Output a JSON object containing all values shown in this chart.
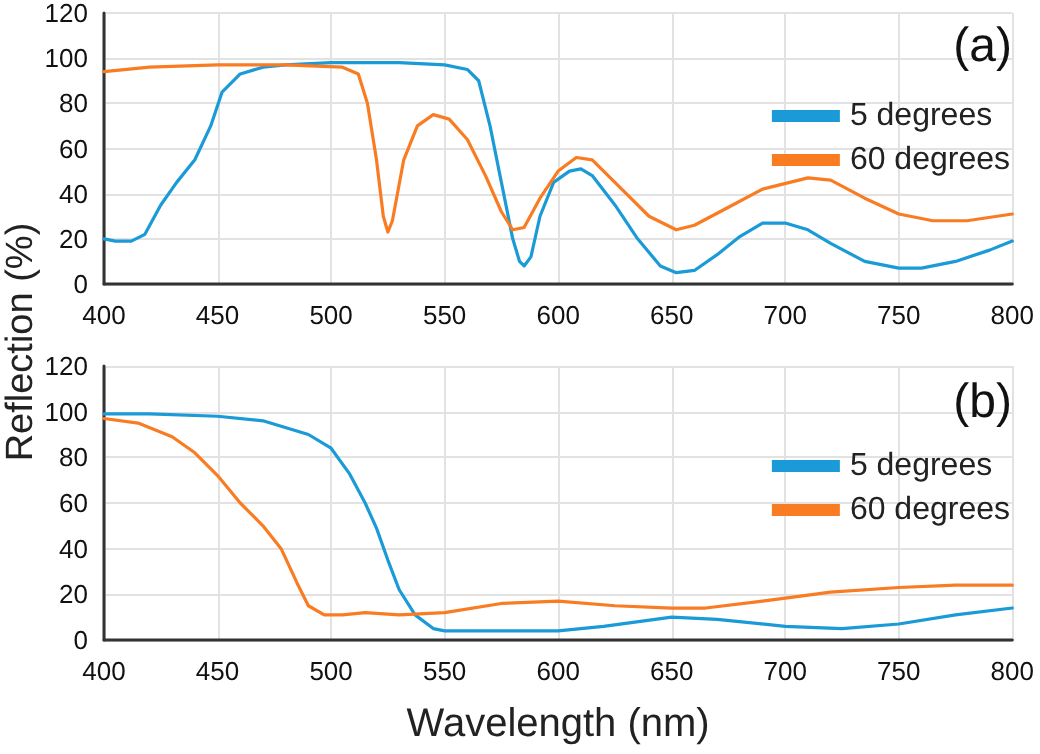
{
  "chart_data": [
    {
      "type": "line",
      "ylabel": "Reflection (%)",
      "annotations": [
        "(a)"
      ],
      "xlim": [
        400,
        800
      ],
      "xticks": [
        400,
        450,
        500,
        550,
        600,
        650,
        700,
        750,
        800
      ],
      "ylim": [
        0,
        120
      ],
      "yticks": [
        0,
        20,
        40,
        60,
        80,
        100,
        120
      ],
      "grid": true,
      "legend": "right",
      "marker": "none",
      "line_style": "solid",
      "series": [
        {
          "name": "5 degrees",
          "color": "#1a9ad6",
          "x": [
            400,
            405,
            412,
            418,
            425,
            432,
            440,
            447,
            452,
            460,
            470,
            480,
            500,
            530,
            550,
            560,
            565,
            570,
            575,
            580,
            583,
            585,
            588,
            592,
            598,
            605,
            610,
            615,
            625,
            635,
            645,
            652,
            660,
            670,
            680,
            690,
            700,
            710,
            720,
            735,
            750,
            760,
            775,
            790,
            800
          ],
          "values": [
            20,
            19,
            19,
            22,
            35,
            45,
            55,
            70,
            85,
            93,
            96,
            97,
            98,
            98,
            97,
            95,
            90,
            70,
            45,
            20,
            10,
            8,
            12,
            30,
            45,
            50,
            51,
            48,
            35,
            20,
            8,
            5,
            6,
            13,
            21,
            27,
            27,
            24,
            18,
            10,
            7,
            7,
            10,
            15,
            19
          ]
        },
        {
          "name": "60 degrees",
          "color": "#f97c23",
          "x": [
            400,
            420,
            450,
            480,
            505,
            512,
            516,
            520,
            523,
            525,
            527,
            532,
            538,
            545,
            552,
            560,
            568,
            575,
            580,
            585,
            592,
            600,
            608,
            615,
            625,
            640,
            652,
            660,
            675,
            690,
            710,
            720,
            735,
            750,
            765,
            780,
            800
          ],
          "values": [
            94,
            96,
            97,
            97,
            96,
            93,
            80,
            55,
            30,
            23,
            28,
            55,
            70,
            75,
            73,
            64,
            48,
            32,
            24,
            25,
            38,
            50,
            56,
            55,
            45,
            30,
            24,
            26,
            34,
            42,
            47,
            46,
            38,
            31,
            28,
            28,
            31
          ]
        }
      ]
    },
    {
      "type": "line",
      "xlabel": "Wavelength (nm)",
      "annotations": [
        "(b)"
      ],
      "xlim": [
        400,
        800
      ],
      "xticks": [
        400,
        450,
        500,
        550,
        600,
        650,
        700,
        750,
        800
      ],
      "ylim": [
        0,
        120
      ],
      "yticks": [
        0,
        20,
        40,
        60,
        80,
        100,
        120
      ],
      "grid": true,
      "legend": "right",
      "marker": "none",
      "line_style": "solid",
      "series": [
        {
          "name": "5 degrees",
          "color": "#1a9ad6",
          "x": [
            400,
            420,
            450,
            470,
            490,
            500,
            508,
            515,
            520,
            525,
            530,
            537,
            545,
            550,
            600,
            620,
            650,
            670,
            700,
            725,
            750,
            775,
            800
          ],
          "values": [
            99,
            99,
            98,
            96,
            90,
            84,
            73,
            60,
            49,
            35,
            22,
            11,
            5,
            4,
            4,
            6,
            10,
            9,
            6,
            5,
            7,
            11,
            14
          ]
        },
        {
          "name": "60 degrees",
          "color": "#f97c23",
          "x": [
            400,
            415,
            430,
            440,
            450,
            460,
            470,
            478,
            485,
            490,
            497,
            505,
            515,
            530,
            550,
            575,
            600,
            625,
            650,
            665,
            690,
            720,
            750,
            775,
            800
          ],
          "values": [
            97,
            95,
            89,
            82,
            72,
            60,
            50,
            40,
            25,
            15,
            11,
            11,
            12,
            11,
            12,
            16,
            17,
            15,
            14,
            14,
            17,
            21,
            23,
            24,
            24
          ]
        }
      ]
    }
  ]
}
